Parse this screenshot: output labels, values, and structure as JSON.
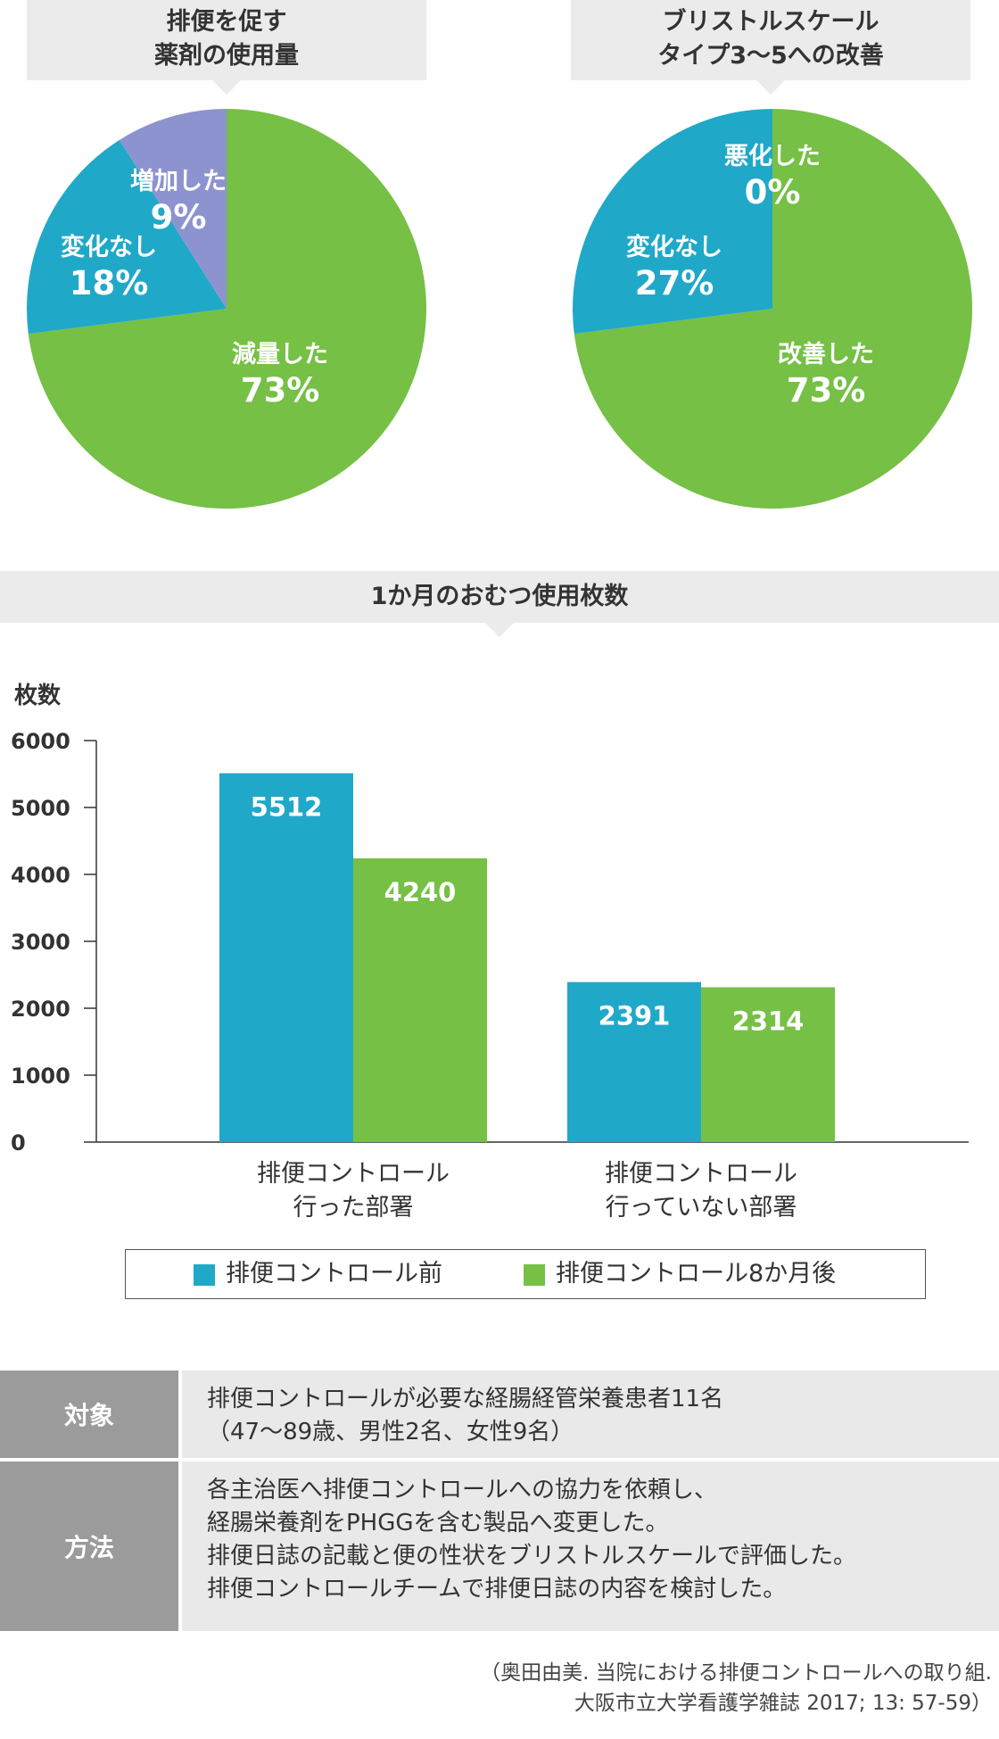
{
  "pie_panels": [
    {
      "title_lines": [
        "排便を促す",
        "薬剤の使用量"
      ]
    },
    {
      "title_lines": [
        "ブリストルスケール",
        "タイプ3〜5への改善"
      ]
    }
  ],
  "bar_panel": {
    "title": "1か月のおむつ使用枚数"
  },
  "colors": {
    "green": "#75c045",
    "blue": "#20a8c8",
    "purple": "#8d93cf",
    "header_bg": "#ebebeb",
    "table_label_bg": "#9b9b9b",
    "table_body_bg": "#e9e9e9"
  },
  "chart_data": [
    {
      "type": "pie",
      "title": "排便を促す薬剤の使用量",
      "slices": [
        {
          "label": "減量した",
          "value": 73,
          "display": "73%",
          "color": "#75c045"
        },
        {
          "label": "変化なし",
          "value": 18,
          "display": "18%",
          "color": "#20a8c8"
        },
        {
          "label": "増加した",
          "value": 9,
          "display": "9%",
          "color": "#8d93cf"
        }
      ]
    },
    {
      "type": "pie",
      "title": "ブリストルスケールタイプ3〜5への改善",
      "slices": [
        {
          "label": "改善した",
          "value": 73,
          "display": "73%",
          "color": "#75c045"
        },
        {
          "label": "変化なし",
          "value": 27,
          "display": "27%",
          "color": "#20a8c8"
        },
        {
          "label": "悪化した",
          "value": 0,
          "display": "0%",
          "color": "#8d93cf"
        }
      ]
    },
    {
      "type": "bar",
      "title": "1か月のおむつ使用枚数",
      "ylabel": "枚数",
      "xlabel": "",
      "ylim": [
        0,
        6000
      ],
      "yticks": [
        0,
        1000,
        2000,
        3000,
        4000,
        5000,
        6000
      ],
      "categories": [
        [
          "排便コントロール",
          "行った部署"
        ],
        [
          "排便コントロール",
          "行っていない部署"
        ]
      ],
      "series": [
        {
          "name": "排便コントロール前",
          "values": [
            5512,
            2391
          ],
          "color": "#20a8c8"
        },
        {
          "name": "排便コントロール8か月後",
          "values": [
            4240,
            2314
          ],
          "color": "#75c045"
        }
      ],
      "legend": "bottom"
    }
  ],
  "table": [
    {
      "label": "対象",
      "lines": [
        "排便コントロールが必要な経腸経管栄養患者11名",
        "（47〜89歳、男性2名、女性9名）"
      ]
    },
    {
      "label": "方法",
      "lines": [
        "各主治医へ排便コントロールへの協力を依頼し、",
        "経腸栄養剤をPHGGを含む製品へ変更した。",
        "排便日誌の記載と便の性状をブリストルスケールで評価した。",
        "排便コントロールチームで排便日誌の内容を検討した。"
      ]
    }
  ],
  "citation_lines": [
    "（奥田由美. 当院における排便コントロールへの取り組.",
    "大阪市立大学看護学雑誌 2017; 13: 57-59）"
  ]
}
